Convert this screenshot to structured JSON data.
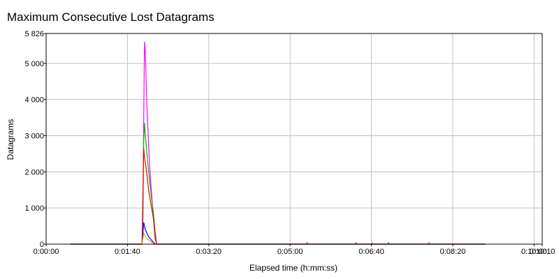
{
  "chart_data": {
    "type": "line",
    "title": "Maximum Consecutive Lost Datagrams",
    "xlabel": "Elapsed time (h:mm:ss)",
    "ylabel": "Datagrams",
    "x_unit": "seconds",
    "xlim": [
      0,
      610
    ],
    "ylim": [
      0,
      5826
    ],
    "x_ticks": [
      0,
      100,
      200,
      300,
      400,
      500,
      600,
      610
    ],
    "x_tick_labels": [
      "0:00:00",
      "0:01:40",
      "0:03:20",
      "0:05:00",
      "0:06:40",
      "0:08:20",
      "0:10:00",
      "0:10:10"
    ],
    "y_ticks": [
      0,
      1000,
      2000,
      3000,
      4000,
      5000,
      5826
    ],
    "y_tick_labels": [
      "0",
      "1 000",
      "2 000",
      "3 000",
      "4 000",
      "5 000",
      "5 826"
    ],
    "grid": true,
    "legend": "none",
    "series": [
      {
        "color": "#ff00ff",
        "points": [
          [
            30,
            0
          ],
          [
            118,
            0
          ],
          [
            119,
            400
          ],
          [
            120,
            3500
          ],
          [
            121,
            5600
          ],
          [
            122,
            5300
          ],
          [
            124,
            3800
          ],
          [
            126,
            2700
          ],
          [
            128,
            1900
          ],
          [
            130,
            1300
          ],
          [
            132,
            700
          ],
          [
            134,
            150
          ],
          [
            136,
            0
          ],
          [
            320,
            0
          ],
          [
            321,
            40
          ],
          [
            322,
            0
          ],
          [
            380,
            0
          ],
          [
            381,
            40
          ],
          [
            382,
            0
          ],
          [
            420,
            0
          ],
          [
            421,
            40
          ],
          [
            422,
            0
          ],
          [
            470,
            0
          ],
          [
            471,
            40
          ],
          [
            472,
            0
          ],
          [
            540,
            0
          ]
        ]
      },
      {
        "color": "#00b000",
        "points": [
          [
            30,
            0
          ],
          [
            118,
            0
          ],
          [
            119,
            900
          ],
          [
            120,
            2900
          ],
          [
            121,
            3350
          ],
          [
            122,
            3000
          ],
          [
            124,
            2500
          ],
          [
            126,
            2000
          ],
          [
            128,
            1600
          ],
          [
            130,
            1200
          ],
          [
            132,
            850
          ],
          [
            134,
            350
          ],
          [
            136,
            0
          ],
          [
            400,
            0
          ],
          [
            401,
            30
          ],
          [
            402,
            0
          ],
          [
            540,
            0
          ]
        ]
      },
      {
        "color": "#ff0000",
        "points": [
          [
            30,
            0
          ],
          [
            118,
            0
          ],
          [
            119,
            1400
          ],
          [
            120,
            2650
          ],
          [
            121,
            2400
          ],
          [
            123,
            2100
          ],
          [
            126,
            1500
          ],
          [
            129,
            1100
          ],
          [
            132,
            700
          ],
          [
            134,
            200
          ],
          [
            136,
            0
          ],
          [
            540,
            0
          ]
        ]
      },
      {
        "color": "#0000ff",
        "points": [
          [
            30,
            0
          ],
          [
            118,
            0
          ],
          [
            120,
            600
          ],
          [
            122,
            400
          ],
          [
            126,
            200
          ],
          [
            130,
            100
          ],
          [
            134,
            0
          ],
          [
            540,
            0
          ]
        ]
      },
      {
        "color": "#ffa000",
        "points": [
          [
            30,
            0
          ],
          [
            118,
            0
          ],
          [
            120,
            300
          ],
          [
            124,
            150
          ],
          [
            128,
            80
          ],
          [
            133,
            0
          ],
          [
            540,
            0
          ]
        ]
      }
    ]
  }
}
